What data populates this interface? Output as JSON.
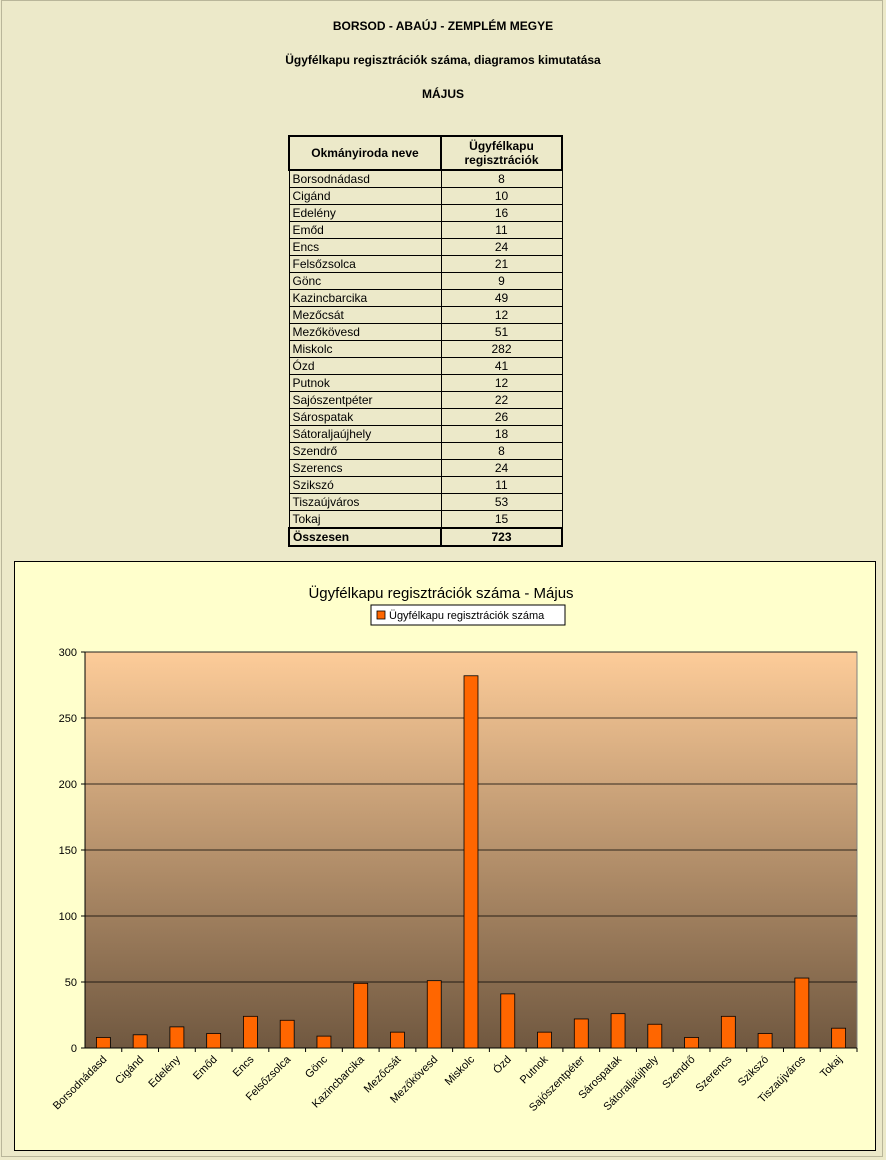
{
  "header": {
    "county": "BORSOD - ABAÚJ - ZEMPLÉM MEGYE",
    "subtitle": "Ügyfélkapu regisztrációk száma, diagramos kimutatása",
    "month": "MÁJUS"
  },
  "table": {
    "col_name": "Okmányiroda neve",
    "col_value": "Ügyfélkapu regisztrációk",
    "rows": [
      {
        "name": "Borsodnádasd",
        "value": "8"
      },
      {
        "name": "Cigánd",
        "value": "10"
      },
      {
        "name": "Edelény",
        "value": "16"
      },
      {
        "name": "Emőd",
        "value": "11"
      },
      {
        "name": "Encs",
        "value": "24"
      },
      {
        "name": "Felsőzsolca",
        "value": "21"
      },
      {
        "name": "Gönc",
        "value": "9"
      },
      {
        "name": "Kazincbarcika",
        "value": "49"
      },
      {
        "name": "Mezőcsát",
        "value": "12"
      },
      {
        "name": "Mezőkövesd",
        "value": "51"
      },
      {
        "name": "Miskolc",
        "value": "282"
      },
      {
        "name": "Ózd",
        "value": "41"
      },
      {
        "name": "Putnok",
        "value": "12"
      },
      {
        "name": "Sajószentpéter",
        "value": "22"
      },
      {
        "name": "Sárospatak",
        "value": "26"
      },
      {
        "name": "Sátoraljaújhely",
        "value": "18"
      },
      {
        "name": "Szendrő",
        "value": "8"
      },
      {
        "name": "Szerencs",
        "value": "24"
      },
      {
        "name": "Szikszó",
        "value": "11"
      },
      {
        "name": "Tiszaújváros",
        "value": "53"
      },
      {
        "name": "Tokaj",
        "value": "15"
      }
    ],
    "total_label": "Összesen",
    "total_value": "723"
  },
  "chart_data": {
    "type": "bar",
    "title": "Ügyfélkapu regisztrációk száma -   Május",
    "legend": "top",
    "grid": true,
    "ylim": [
      0,
      300
    ],
    "yticks": [
      0,
      50,
      100,
      150,
      200,
      250,
      300
    ],
    "categories": [
      "Borsodnádasd",
      "Cigánd",
      "Edelény",
      "Emőd",
      "Encs",
      "Felsőzsolca",
      "Gönc",
      "Kazincbarcika",
      "Mezőcsát",
      "Mezőkövesd",
      "Miskolc",
      "Ózd",
      "Putnok",
      "Sajószentpéter",
      "Sárospatak",
      "Sátoraljaújhely",
      "Szendrő",
      "Szerencs",
      "Szikszó",
      "Tiszaújváros",
      "Tokaj"
    ],
    "series": [
      {
        "name": "Ügyfélkapu regisztrációk száma",
        "values": [
          8,
          10,
          16,
          11,
          24,
          21,
          9,
          49,
          12,
          51,
          282,
          41,
          12,
          22,
          26,
          18,
          8,
          24,
          11,
          53,
          15
        ]
      }
    ],
    "colors": {
      "bar": "#ff6600",
      "plot_top": "#fdcc99",
      "plot_bottom": "#705840",
      "chart_bg": "#ffffcc"
    }
  }
}
